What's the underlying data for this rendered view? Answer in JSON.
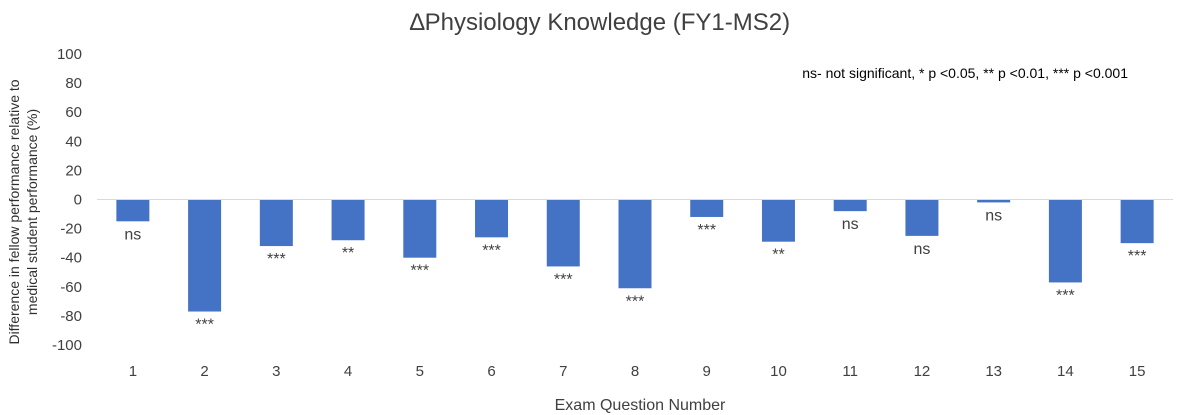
{
  "chart_data": {
    "type": "bar",
    "title": "∆Physiology Knowledge (FY1-MS2)",
    "xlabel": "Exam Question Number",
    "ylabel_lines": [
      "Difference in fellow performance relative to",
      "medical student performance (%)"
    ],
    "ylim": [
      -100,
      100
    ],
    "yticks": [
      100,
      80,
      60,
      40,
      20,
      0,
      -20,
      -40,
      -60,
      -80,
      -100
    ],
    "categories": [
      "1",
      "2",
      "3",
      "4",
      "5",
      "6",
      "7",
      "8",
      "9",
      "10",
      "11",
      "12",
      "13",
      "14",
      "15"
    ],
    "values": [
      -15,
      -77,
      -32,
      -28,
      -40,
      -26,
      -46,
      -61,
      -12,
      -29,
      -8,
      -25,
      -2,
      -57,
      -30
    ],
    "significance": [
      "ns",
      "***",
      "***",
      "**",
      "***",
      "***",
      "***",
      "***",
      "***",
      "**",
      "ns",
      "ns",
      "ns",
      "***",
      "***"
    ],
    "legend_note": "ns- not significant, * p <0.05, ** p <0.01, *** p <0.001",
    "bar_color": "#4472c4",
    "grid": false
  }
}
